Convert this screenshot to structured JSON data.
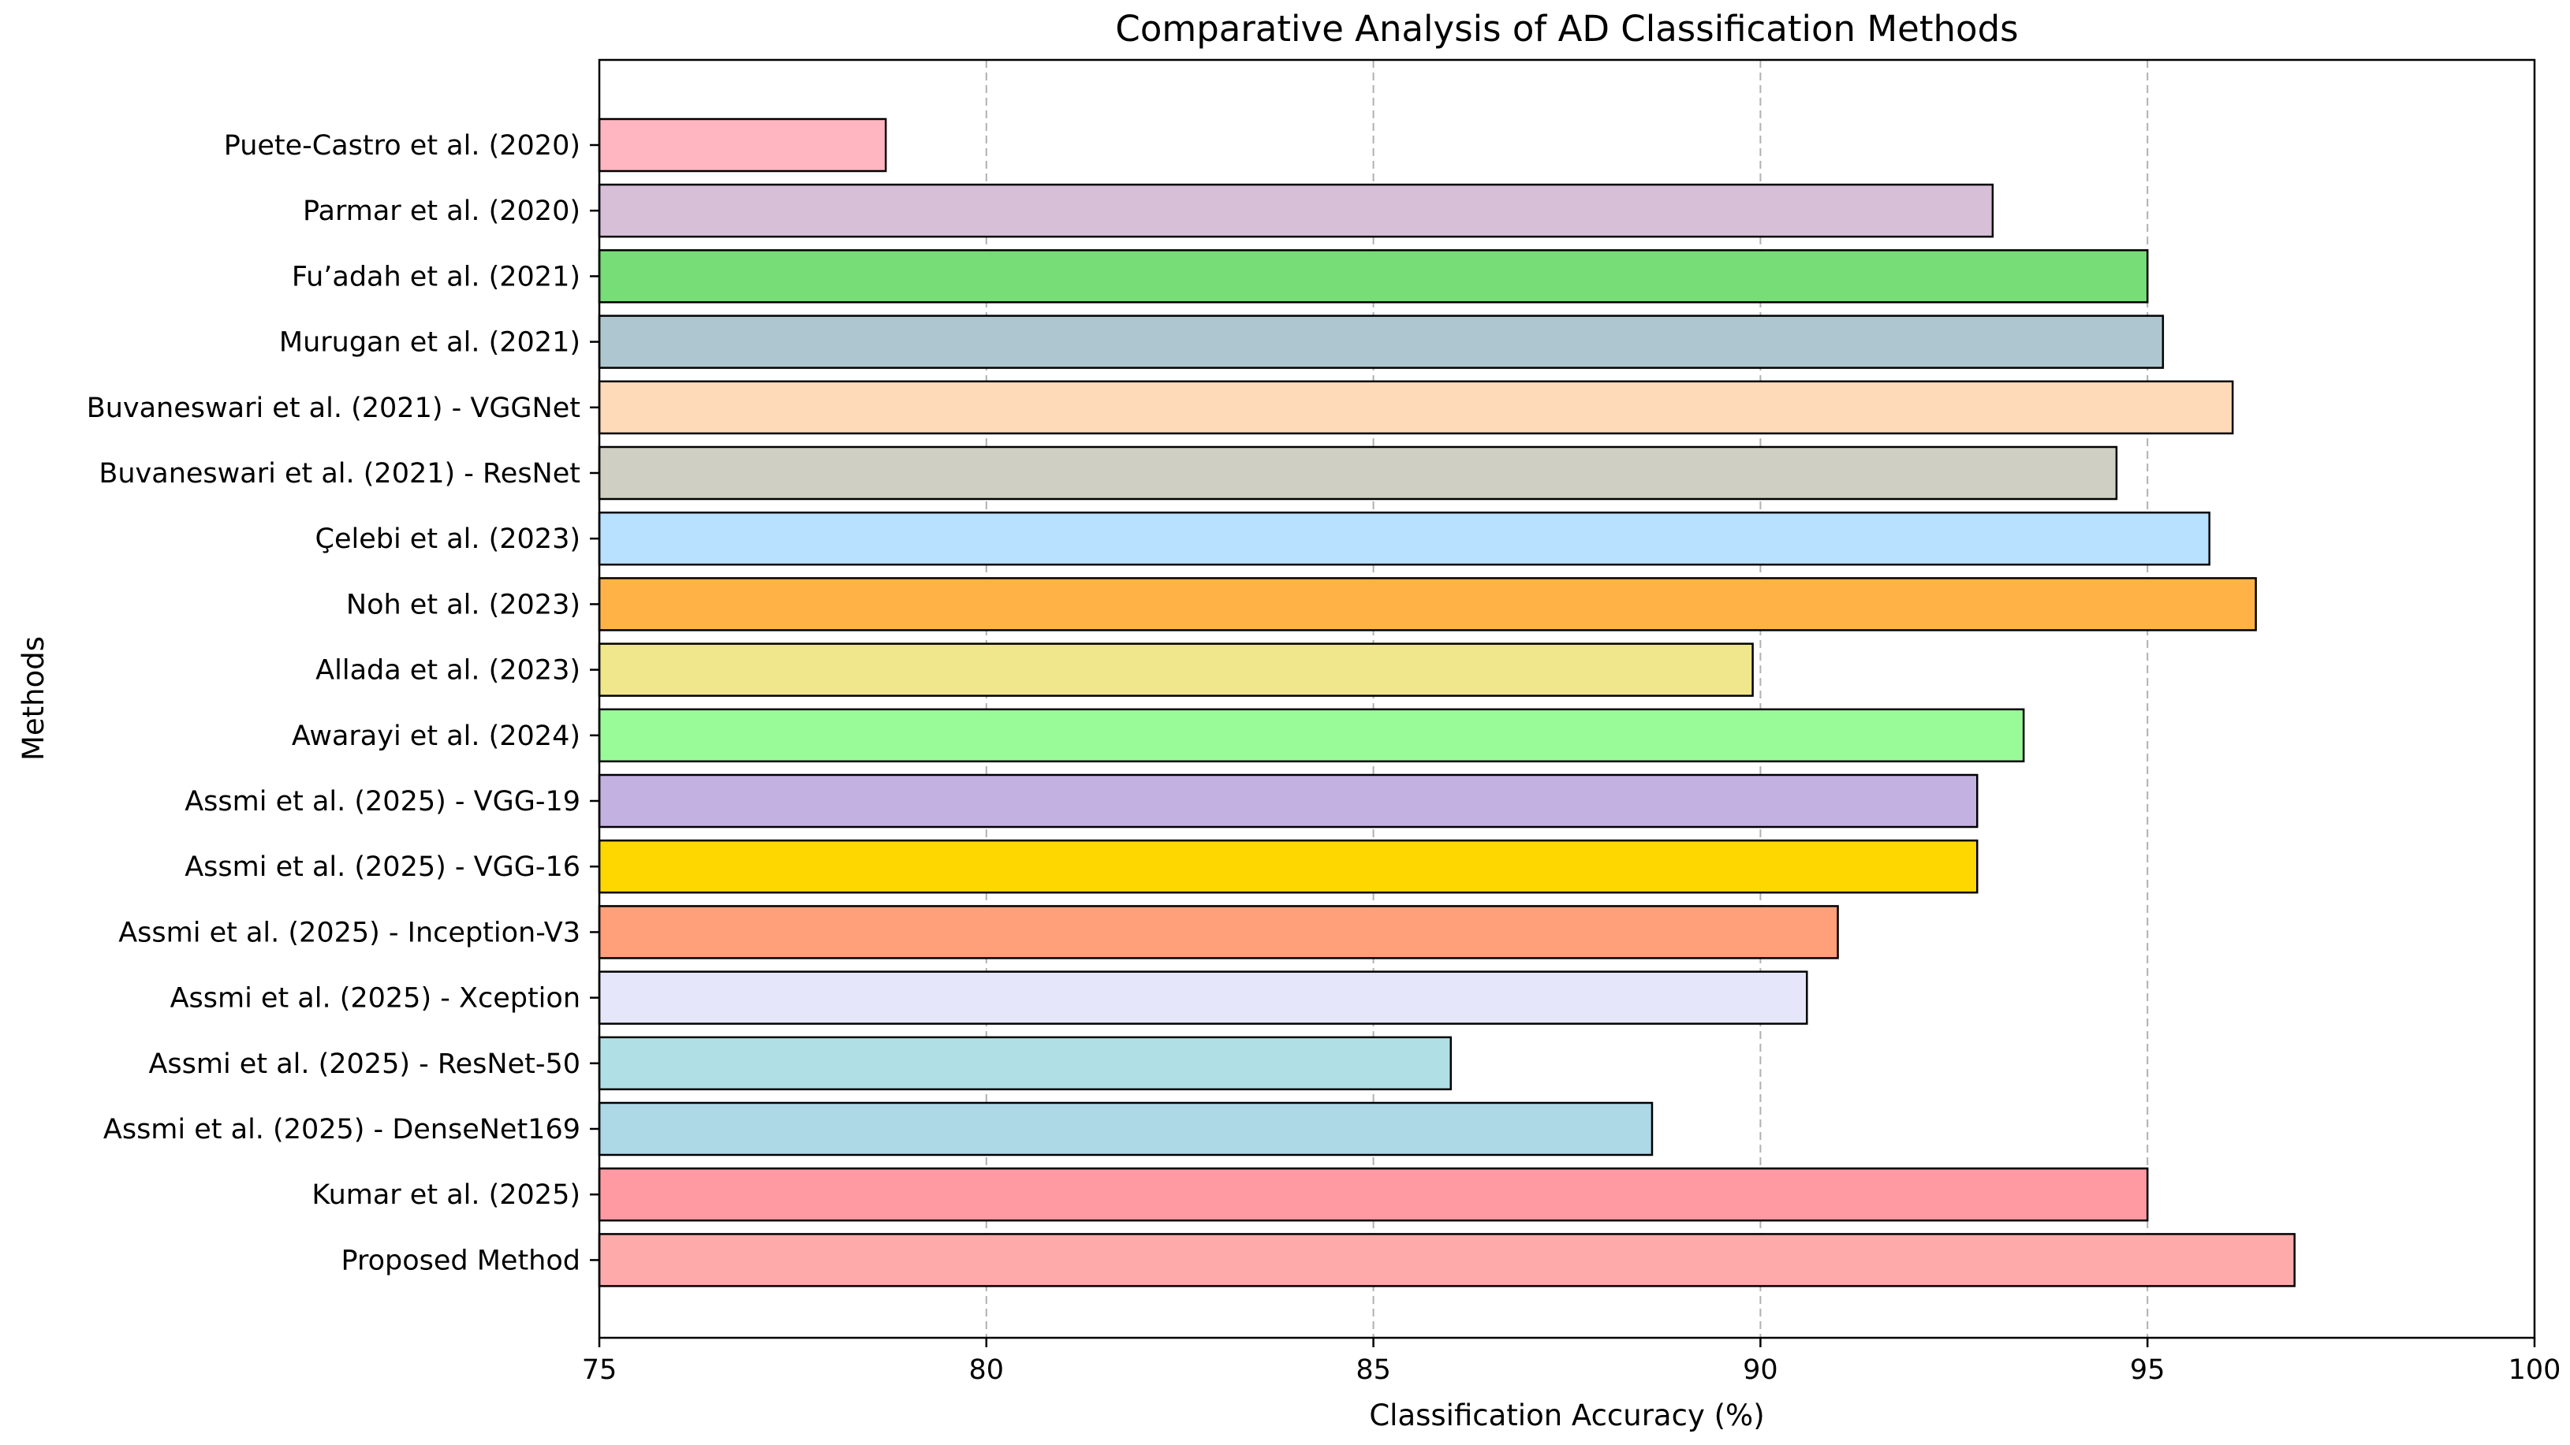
{
  "chart_data": {
    "type": "bar",
    "orientation": "horizontal",
    "title": "Comparative Analysis of AD Classification Methods",
    "xlabel": "Classification Accuracy (%)",
    "ylabel": "Methods",
    "xlim": [
      75,
      100
    ],
    "xticks": [
      75,
      80,
      85,
      90,
      95,
      100
    ],
    "grid": "x-axis dashed",
    "categories": [
      "Puete-Castro et al. (2020)",
      "Parmar et al. (2020)",
      "Fu’adah et al. (2021)",
      "Murugan et al. (2021)",
      "Buvaneswari et al. (2021) - VGGNet",
      "Buvaneswari et al. (2021) - ResNet",
      "Çelebi et al. (2023)",
      "Noh et al. (2023)",
      "Allada et al. (2023)",
      "Awarayi et al. (2024)",
      "Assmi et al. (2025) - VGG-19",
      "Assmi et al. (2025) - VGG-16",
      "Assmi et al. (2025) - Inception-V3",
      "Assmi et al. (2025) - Xception",
      "Assmi et al. (2025) - ResNet-50",
      "Assmi et al. (2025) - DenseNet169",
      "Kumar et al. (2025)",
      "Proposed Method"
    ],
    "values": [
      78.7,
      93.0,
      95.0,
      95.2,
      96.1,
      94.6,
      95.8,
      96.4,
      89.9,
      93.4,
      92.8,
      92.8,
      91.0,
      90.6,
      86.0,
      88.6,
      95.0,
      96.9
    ],
    "colors": [
      "#ffb6c1",
      "#d8bfd8",
      "#77dd77",
      "#aec6cf",
      "#ffdab9",
      "#cfcfc4",
      "#b8e0ff",
      "#ffb347",
      "#f0e68c",
      "#98fb98",
      "#c3b1e1",
      "#ffd700",
      "#ffa07a",
      "#e6e6fa",
      "#b0e0e6",
      "#add8e6",
      "#ff9aa2",
      "#ffaaaa"
    ]
  }
}
